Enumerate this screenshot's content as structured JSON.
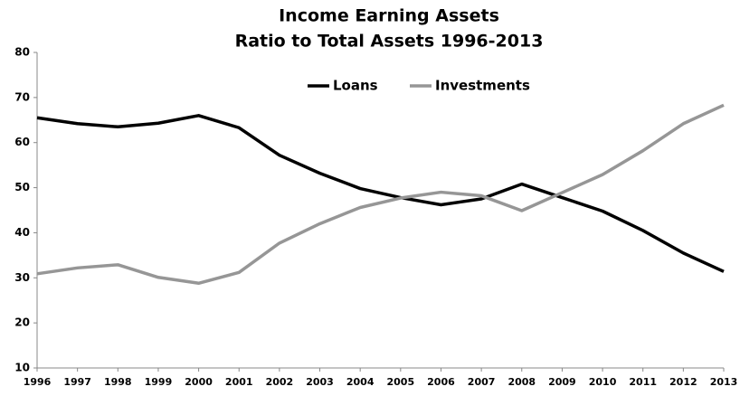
{
  "chart_data": {
    "type": "line",
    "title": "Income Earning Assets",
    "subtitle": "Ratio to Total Assets 1996-2013",
    "categories": [
      "1996",
      "1997",
      "1998",
      "1999",
      "2000",
      "2001",
      "2002",
      "2003",
      "2004",
      "2005",
      "2006",
      "2007",
      "2008",
      "2009",
      "2010",
      "2011",
      "2012",
      "2013"
    ],
    "series": [
      {
        "name": "Loans",
        "color": "#000000",
        "values": [
          65.5,
          64.2,
          63.5,
          64.3,
          66.0,
          63.3,
          57.2,
          53.2,
          49.8,
          47.8,
          46.2,
          47.5,
          50.8,
          47.8,
          44.8,
          40.5,
          35.5,
          31.4
        ]
      },
      {
        "name": "Investments",
        "color": "#969696",
        "values": [
          30.9,
          32.2,
          32.9,
          30.1,
          28.8,
          31.2,
          37.7,
          42.0,
          45.6,
          47.7,
          49.0,
          48.2,
          44.9,
          48.9,
          52.9,
          58.2,
          64.2,
          68.3
        ]
      }
    ],
    "ylim": [
      10,
      80
    ],
    "yticks": [
      10,
      20,
      30,
      40,
      50,
      60,
      70,
      80
    ],
    "grid": false,
    "legend": "top"
  }
}
